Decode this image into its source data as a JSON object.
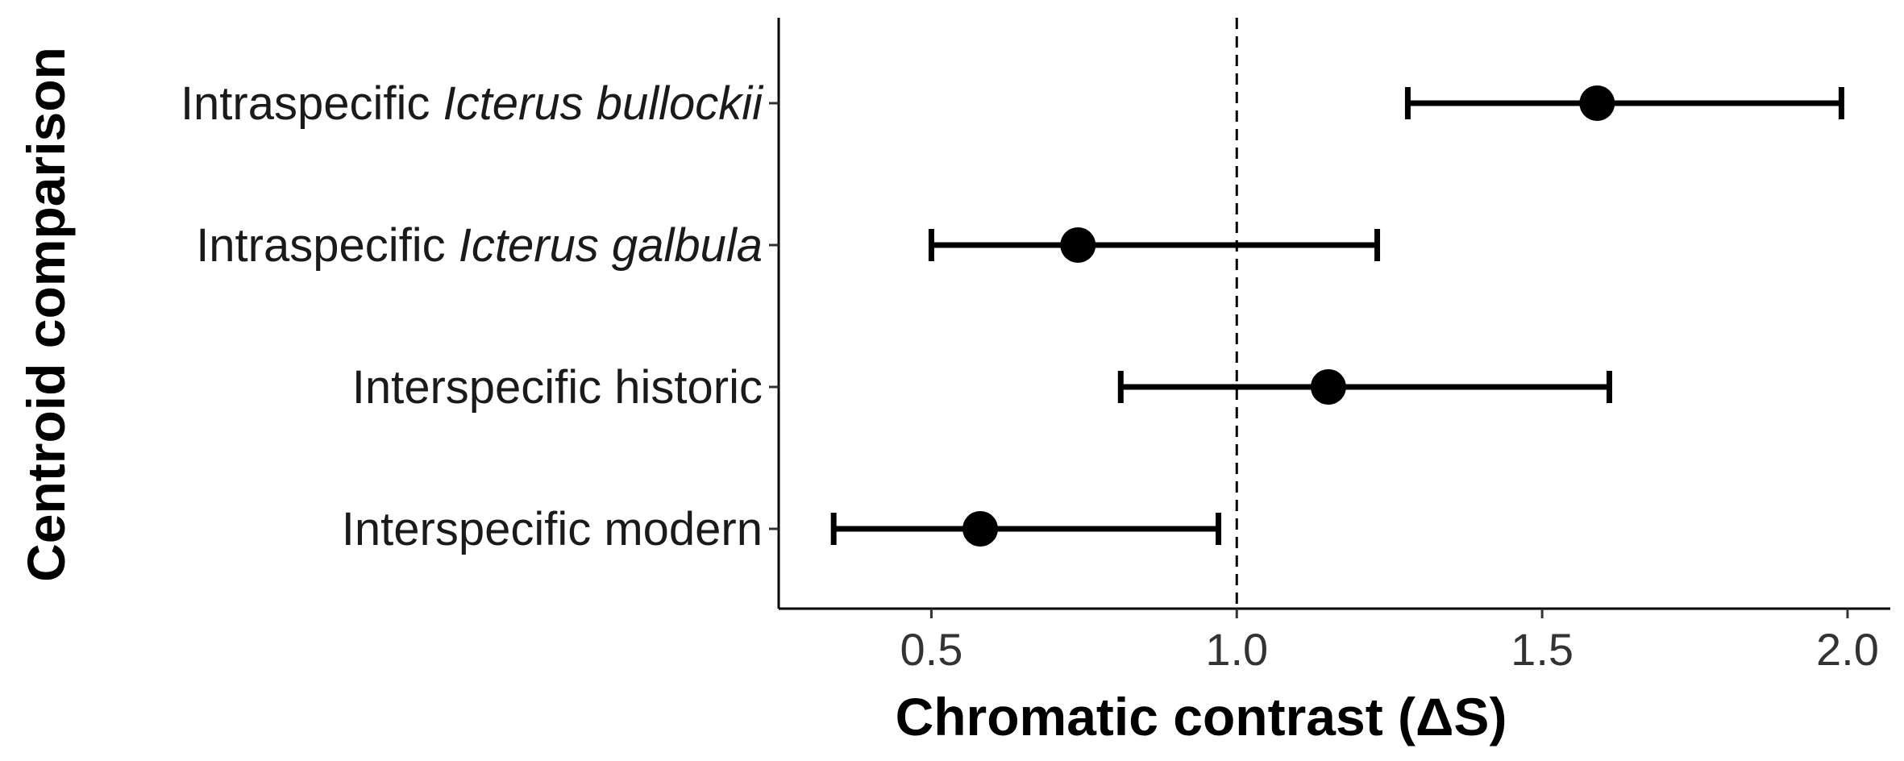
{
  "chart_data": {
    "type": "dot-errorbar",
    "xlabel": "Chromatic contrast (ΔS)",
    "ylabel": "Centroid comparison",
    "xlim": [
      0.25,
      2.07
    ],
    "x_ticks": [
      {
        "value": 0.5,
        "label": "0.5"
      },
      {
        "value": 1.0,
        "label": "1.0"
      },
      {
        "value": 1.5,
        "label": "1.5"
      },
      {
        "value": 2.0,
        "label": "2.0"
      }
    ],
    "reference_line": {
      "x": 1.0,
      "style": "dashed"
    },
    "grid": false,
    "categories": [
      {
        "label_plain": "Intraspecific ",
        "label_italic": "Icterus bullockii",
        "estimate": 1.59,
        "lower": 1.28,
        "upper": 1.99
      },
      {
        "label_plain": "Intraspecific ",
        "label_italic": "Icterus galbula",
        "estimate": 0.74,
        "lower": 0.5,
        "upper": 1.23
      },
      {
        "label_plain": "Interspecific historic",
        "label_italic": "",
        "estimate": 1.15,
        "lower": 0.81,
        "upper": 1.61
      },
      {
        "label_plain": "Interspecific modern",
        "label_italic": "",
        "estimate": 0.58,
        "lower": 0.34,
        "upper": 0.97
      }
    ],
    "colors": {
      "marker": "#000000",
      "axis": "#000000"
    }
  }
}
